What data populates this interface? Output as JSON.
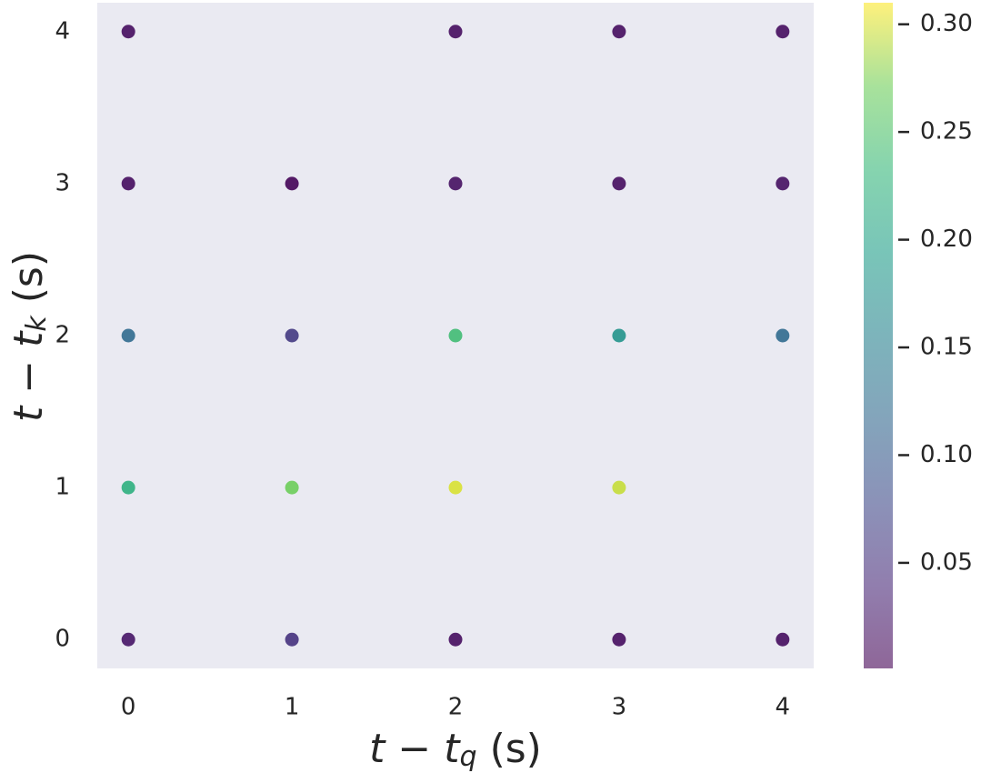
{
  "chart_data": {
    "type": "scatter",
    "x_label": [
      "t",
      " − ",
      "t",
      "q",
      " (s)"
    ],
    "y_label": [
      "t",
      " − ",
      "t",
      "k",
      " (s)"
    ],
    "x": [
      0,
      2,
      3,
      4,
      0,
      1,
      2,
      3,
      4,
      0,
      1,
      2,
      3,
      4,
      0,
      1,
      2,
      3,
      0,
      1,
      2,
      3,
      4
    ],
    "y": [
      4,
      4,
      4,
      4,
      3,
      3,
      3,
      3,
      3,
      2,
      2,
      2,
      2,
      2,
      1,
      1,
      1,
      1,
      0,
      0,
      0,
      0,
      0
    ],
    "values": [
      0.012,
      0.012,
      0.012,
      0.012,
      0.012,
      0.003,
      0.015,
      0.012,
      0.015,
      0.12,
      0.06,
      0.24,
      0.18,
      0.12,
      0.22,
      0.27,
      0.3,
      0.295,
      0.02,
      0.05,
      0.012,
      0.012,
      0.012
    ],
    "xlim": [
      -0.19,
      4.19
    ],
    "ylim": [
      -0.19,
      4.19
    ],
    "xticks": [
      0,
      1,
      2,
      3,
      4
    ],
    "yticks": [
      0,
      1,
      2,
      3,
      4
    ],
    "colormap": "viridis",
    "clim": [
      0.001,
      0.31
    ],
    "cticks": [
      0.05,
      {
        "value": 0.1,
        "label": "0.10"
      },
      0.15,
      {
        "value": 0.2,
        "label": "0.20"
      },
      0.25,
      {
        "value": 0.3,
        "label": "0.30"
      }
    ],
    "grid": false
  }
}
